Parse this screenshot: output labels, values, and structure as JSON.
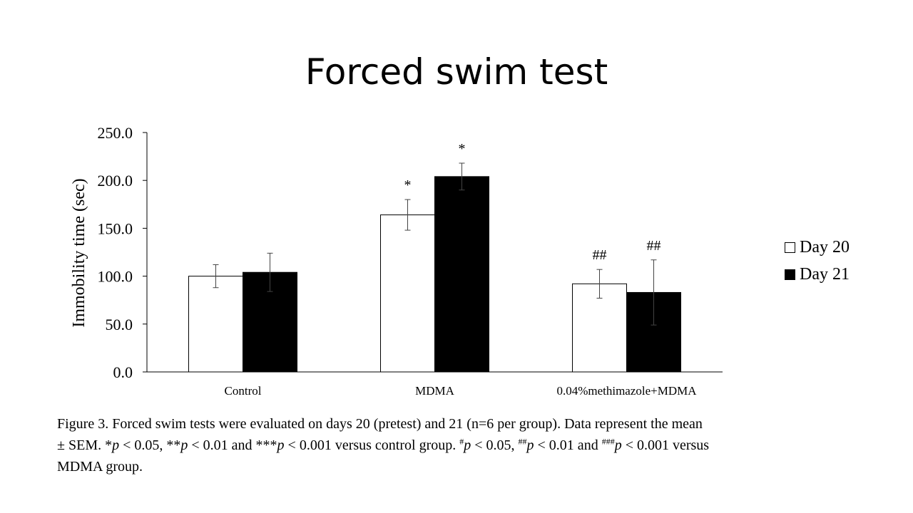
{
  "title": "Forced swim test",
  "chart_data": {
    "type": "bar",
    "categories": [
      "Control",
      "MDMA",
      "0.04%methimazole+MDMA"
    ],
    "series": [
      {
        "name": "Day 20",
        "color": "#ffffff",
        "values": [
          100.0,
          164.0,
          92.0
        ],
        "errors": [
          12.0,
          16.0,
          15.0
        ],
        "annotations": [
          "",
          "*",
          "##"
        ]
      },
      {
        "name": "Day 21",
        "color": "#000000",
        "values": [
          104.0,
          204.0,
          83.0
        ],
        "errors": [
          20.0,
          14.0,
          34.0
        ],
        "annotations": [
          "",
          "*",
          "##"
        ]
      }
    ],
    "ylabel": "Immobility time (sec)",
    "ylim": [
      0,
      250
    ],
    "yticks": [
      "0.0",
      "50.0",
      "100.0",
      "150.0",
      "200.0",
      "250.0"
    ],
    "grid": false,
    "legend": "right"
  },
  "caption": {
    "l1": "Figure 3. Forced swim tests were evaluated on days 20 (pretest) and 21 (n=6 per group). Data represent the mean",
    "l2a": "± SEM. *",
    "p1": "p",
    "l2b": " < 0.05, **",
    "p2": "p",
    "l2c": " < 0.01 and ***",
    "p3": "p",
    "l2d": " < 0.001 versus control group. ",
    "s1": "#",
    "p4": "p",
    "l2e": " < 0.05, ",
    "s2": "##",
    "p5": "p",
    "l2f": " < 0.01 and ",
    "s3": "###",
    "p6": "p",
    "l2g": " < 0.001 versus",
    "l3": "MDMA group."
  }
}
